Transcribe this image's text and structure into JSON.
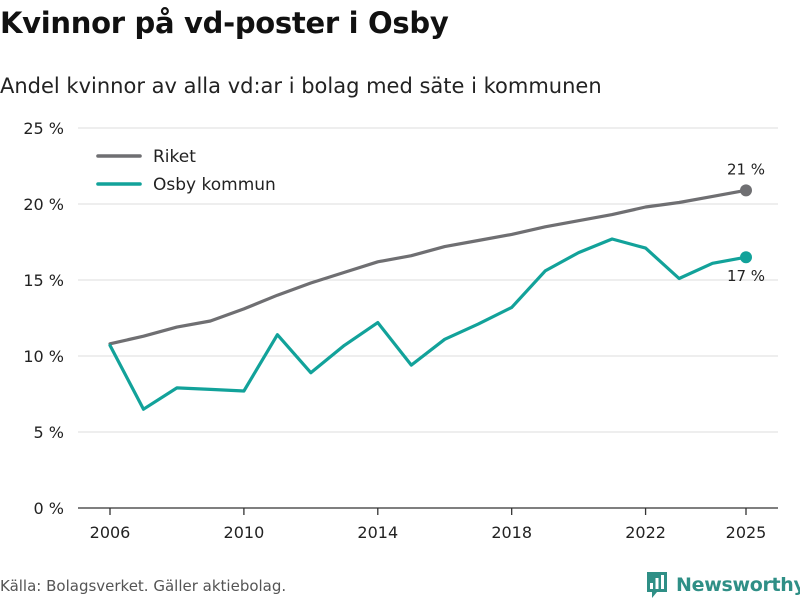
{
  "title": "Kvinnor på vd-poster i Osby",
  "subtitle": "Andel kvinnor av alla vd:ar i bolag med säte i kommunen",
  "source": "Källa: Bolagsverket. Gäller aktiebolag.",
  "brand": "Newsworthy",
  "colors": {
    "riket": "#6f6f72",
    "osby": "#12a29a",
    "grid": "#dcdcdc",
    "axis": "#333333",
    "brand": "#2f8f86"
  },
  "chart_data": {
    "type": "line",
    "title": "Kvinnor på vd-poster i Osby",
    "xlabel": "",
    "ylabel": "",
    "xlim": [
      2006,
      2025
    ],
    "ylim": [
      0,
      25
    ],
    "grid": true,
    "legend_position": "top-left",
    "x": [
      2006,
      2007,
      2008,
      2009,
      2010,
      2011,
      2012,
      2013,
      2014,
      2015,
      2016,
      2017,
      2018,
      2019,
      2020,
      2021,
      2022,
      2023,
      2024,
      2025
    ],
    "x_ticks": [
      {
        "value": 2006,
        "label": "2006"
      },
      {
        "value": 2010,
        "label": "2010"
      },
      {
        "value": 2014,
        "label": "2014"
      },
      {
        "value": 2018,
        "label": "2018"
      },
      {
        "value": 2022,
        "label": "2022"
      },
      {
        "value": 2025,
        "label": "2025"
      }
    ],
    "y_ticks": [
      {
        "value": 0,
        "label": "0 %"
      },
      {
        "value": 5,
        "label": "5 %"
      },
      {
        "value": 10,
        "label": "10 %"
      },
      {
        "value": 15,
        "label": "15 %"
      },
      {
        "value": 20,
        "label": "20 %"
      },
      {
        "value": 25,
        "label": "25 %"
      }
    ],
    "series": [
      {
        "name": "Riket",
        "color": "#6f6f72",
        "values": [
          10.8,
          11.3,
          11.9,
          12.3,
          13.1,
          14.0,
          14.8,
          15.5,
          16.2,
          16.6,
          17.2,
          17.6,
          18.0,
          18.5,
          18.9,
          19.3,
          19.8,
          20.1,
          20.5,
          20.9
        ],
        "end_label": "21 %",
        "end_label_position": "above"
      },
      {
        "name": "Osby kommun",
        "color": "#12a29a",
        "values": [
          10.7,
          6.5,
          7.9,
          7.8,
          7.7,
          11.4,
          8.9,
          10.7,
          12.2,
          9.4,
          11.1,
          12.1,
          13.2,
          15.6,
          16.8,
          17.7,
          17.1,
          15.1,
          16.1,
          16.5
        ],
        "end_label": "17 %",
        "end_label_position": "below"
      }
    ]
  }
}
